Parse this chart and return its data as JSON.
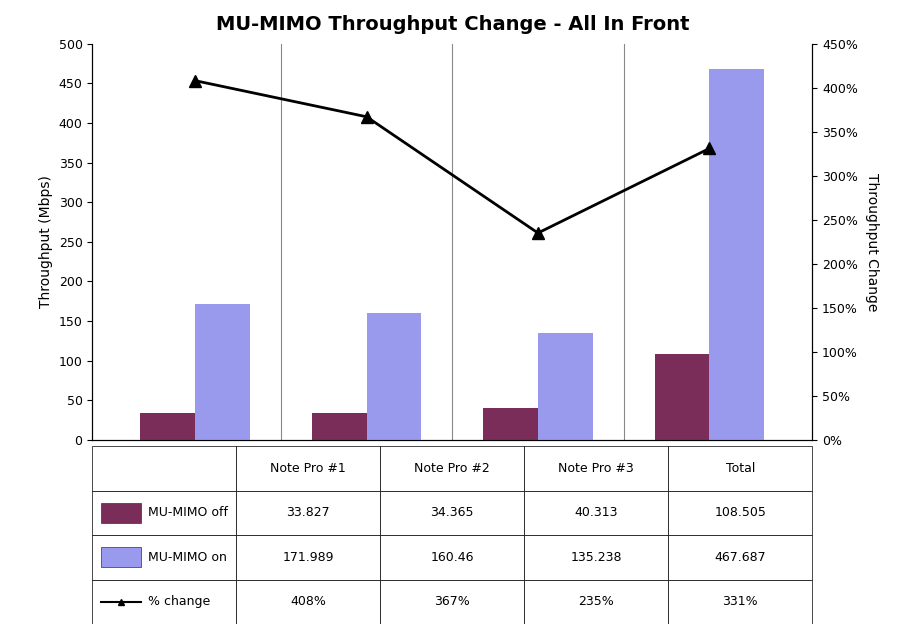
{
  "title": "MU-MIMO Throughput Change - All In Front",
  "categories": [
    "Note Pro #1",
    "Note Pro #2",
    "Note Pro #3",
    "Total"
  ],
  "mimo_off": [
    33.827,
    34.365,
    40.313,
    108.505
  ],
  "mimo_on": [
    171.989,
    160.46,
    135.238,
    467.687
  ],
  "pct_change": [
    408,
    367,
    235,
    331
  ],
  "pct_change_labels": [
    "408%",
    "367%",
    "235%",
    "331%"
  ],
  "mimo_off_color": "#7B2D5A",
  "mimo_on_color": "#9999EE",
  "line_color": "#000000",
  "bar_width": 0.32,
  "ylim_left": [
    0,
    500
  ],
  "ylim_right": [
    0,
    450
  ],
  "ylabel_left": "Throughput (Mbps)",
  "ylabel_right": "Throughput Change",
  "title_fontsize": 14,
  "axis_fontsize": 10,
  "tick_fontsize": 9,
  "table_row1_label": "MU-MIMO off",
  "table_row2_label": "MU-MIMO on",
  "table_row3_label": "% change",
  "background_color": "#FFFFFF"
}
